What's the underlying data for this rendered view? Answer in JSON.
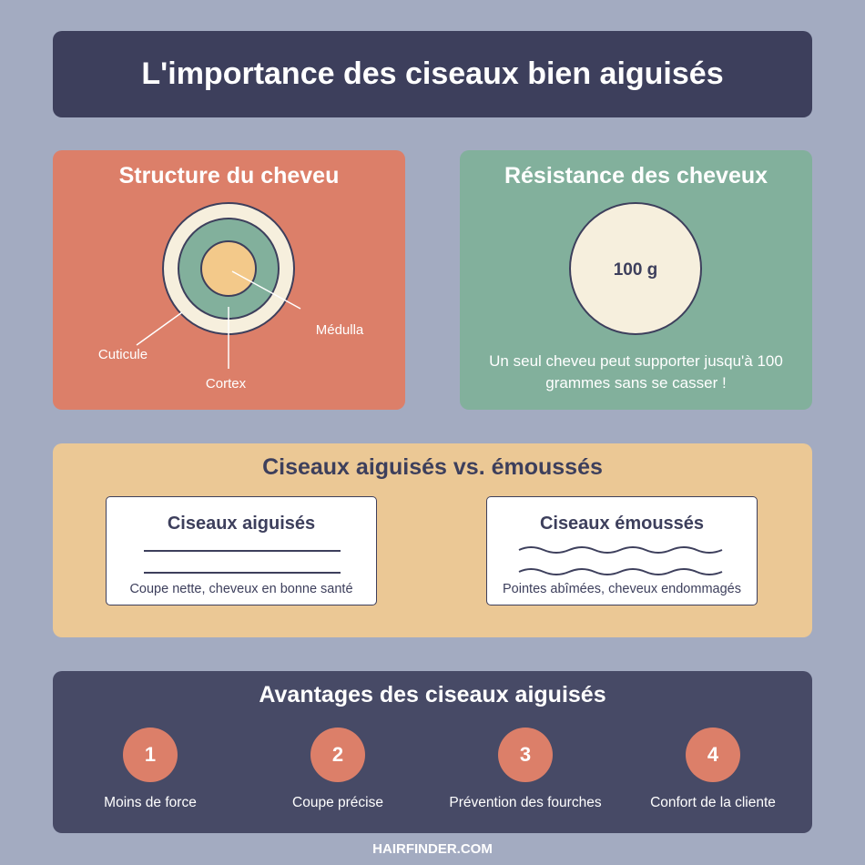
{
  "title": "L'importance des ciseaux bien aiguisés",
  "structure": {
    "title": "Structure du cheveu",
    "labels": {
      "cuticle": "Cuticule",
      "cortex": "Cortex",
      "medulla": "Médulla"
    },
    "colors": {
      "cuticle": "#f6efdd",
      "cortex": "#82b09c",
      "medulla": "#f3c98a",
      "outline": "#3d3f5c"
    }
  },
  "resistance": {
    "title": "Résistance des cheveux",
    "weight": "100 g",
    "caption": "Un seul cheveu peut supporter jusqu'à 100 grammes sans se casser !"
  },
  "comparison": {
    "title": "Ciseaux aiguisés vs. émoussés",
    "sharp": {
      "title": "Ciseaux aiguisés",
      "caption": "Coupe nette, cheveux en bonne santé"
    },
    "dull": {
      "title": "Ciseaux émoussés",
      "caption": "Pointes abîmées, cheveux endommagés"
    }
  },
  "benefits": {
    "title": "Avantages des ciseaux aiguisés",
    "items": [
      {
        "number": "1",
        "label": "Moins de force"
      },
      {
        "number": "2",
        "label": "Coupe précise"
      },
      {
        "number": "3",
        "label": "Prévention des fourches"
      },
      {
        "number": "4",
        "label": "Confort de la cliente"
      }
    ]
  },
  "footer": "HAIRFINDER.COM",
  "colors": {
    "background": "#a3abc1",
    "dark": "#3d3f5c",
    "coral": "#dc7f69",
    "green": "#82b09c",
    "sand": "#ebc895"
  }
}
